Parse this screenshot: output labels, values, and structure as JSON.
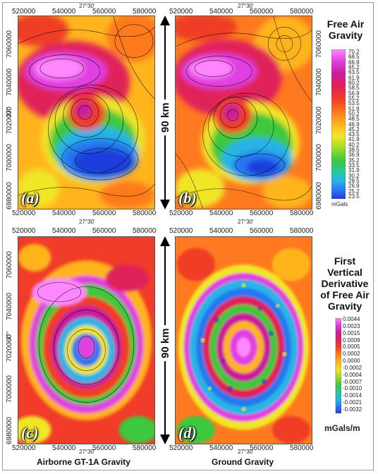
{
  "map": {
    "x_ticks": [
      "520000",
      "540000",
      "560000",
      "580000"
    ],
    "y_ticks": [
      "7060000",
      "7040000",
      "7020000",
      "7000000",
      "6980000"
    ],
    "longitude_label": "27°30'",
    "latitude_label": "-27°",
    "scale_label": "90 km"
  },
  "panels": [
    {
      "letter": "(a)"
    },
    {
      "letter": "(b)"
    },
    {
      "letter": "(c)"
    },
    {
      "letter": "(d)"
    }
  ],
  "legend_fag": {
    "title_lines": [
      "Free Air",
      "Gravity"
    ],
    "unit": "mGals",
    "values": [
      "70.2",
      "68.5",
      "66.9",
      "65.2",
      "63.5",
      "61.9",
      "60.2",
      "58.5",
      "56.9",
      "55.2",
      "53.5",
      "51.9",
      "50.2",
      "48.5",
      "46.9",
      "45.2",
      "43.5",
      "41.9",
      "40.2",
      "38.5",
      "36.9",
      "35.2",
      "33.5",
      "31.9",
      "30.2",
      "28.5",
      "26.9",
      "25.2",
      "23.5"
    ]
  },
  "legend_fvd": {
    "title_lines": [
      "First",
      "Vertical",
      "Derivative",
      "of Free Air",
      "Gravity"
    ],
    "unit": "mGals/m",
    "values": [
      "0.0044",
      "0.0023",
      "0.0015",
      "0.0009",
      "0.0005",
      "0.0002",
      "0.0000",
      "-0.0002",
      "-0.0004",
      "-0.0007",
      "-0.0010",
      "-0.0014",
      "-0.0021",
      "-0.0032"
    ]
  },
  "bottom_titles": {
    "left": "Airborne GT-1A Gravity",
    "right": "Ground Gravity"
  },
  "colors": {
    "ramp": [
      "#ff88ff",
      "#e040e0",
      "#c81e9c",
      "#e0205a",
      "#f03c28",
      "#ff7a1e",
      "#ffb41e",
      "#f0e628",
      "#a0dc28",
      "#3cc83c",
      "#28c8a0",
      "#28b4e6",
      "#2878f0",
      "#1e3cdc"
    ]
  }
}
